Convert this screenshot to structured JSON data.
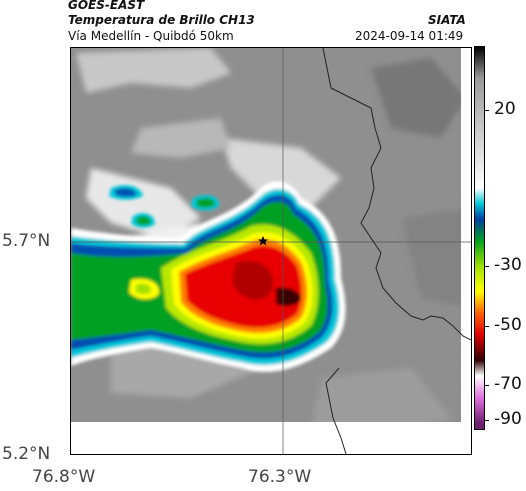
{
  "header": {
    "satellite": "GOES-EAST",
    "product": "Temperatura de Brillo CH13",
    "region": "Vía Medellín - Quibdó 50km",
    "agency": "SIATA",
    "datetime": "2024-09-14 01:49"
  },
  "axes": {
    "lat_labels": [
      "5.7°N",
      "5.2°N"
    ],
    "lon_labels": [
      "76.8°W",
      "76.3°W"
    ]
  },
  "colorbar": {
    "tick_labels": [
      "20",
      "-30",
      "-50",
      "-70",
      "-90"
    ],
    "stops": [
      {
        "value": 30,
        "color": "#000000"
      },
      {
        "value": 20,
        "color": "#9a9a9a"
      },
      {
        "value": -15,
        "color": "#ffffff"
      },
      {
        "value": -20,
        "color": "#00c8d8"
      },
      {
        "value": -25,
        "color": "#0040a0"
      },
      {
        "value": -32,
        "color": "#00a020"
      },
      {
        "value": -40,
        "color": "#a0e000"
      },
      {
        "value": -48,
        "color": "#ffff00"
      },
      {
        "value": -55,
        "color": "#ff6000"
      },
      {
        "value": -62,
        "color": "#e00000"
      },
      {
        "value": -70,
        "color": "#300000"
      },
      {
        "value": -75,
        "color": "#ffffff"
      },
      {
        "value": -82,
        "color": "#e070e0"
      },
      {
        "value": -90,
        "color": "#702070"
      }
    ]
  },
  "map": {
    "marker": "star-icon"
  }
}
